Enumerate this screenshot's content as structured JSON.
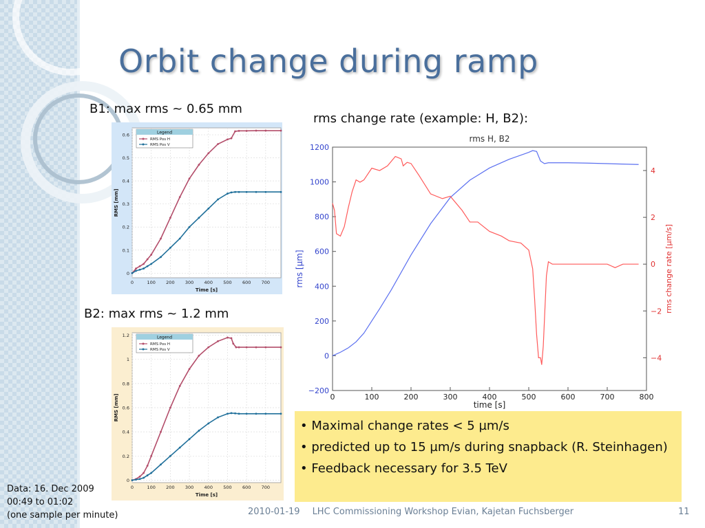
{
  "slide": {
    "title": "Orbit change during ramp",
    "b1_caption": "B1: max rms ~ 0.65 mm",
    "b2_caption": "B2: max rms ~ 1.2 mm",
    "rate_caption": "rms change rate (example: H, B2):",
    "bullets": [
      "• Maximal change rates < 5 µm/s",
      "• predicted up to 15 µm/s during snapback (R. Steinhagen)",
      "• Feedback necessary for 3.5 TeV"
    ],
    "data_note": [
      "Data: 16. Dec 2009",
      "00:49 to 01:02",
      "(one sample per minute)"
    ],
    "footer_date": "2010-01-19",
    "footer_text": "LHC Commissioning Workshop Evian, Kajetan Fuchsberger",
    "page_number": "11",
    "colors": {
      "title": "#4a6f9c",
      "b1_panel_bg": "#d3e6f8",
      "b2_panel_bg": "#fbeed0",
      "bullet_box": "#fdeb8e",
      "rms_h": "#b34d6a",
      "rms_v": "#1f6f9a",
      "rms_line": "#5a6ff0",
      "rate_line": "#ff5a5a"
    }
  },
  "chart_data": [
    {
      "id": "b1",
      "type": "line",
      "xlabel": "Time [s]",
      "ylabel": "RMS [mm]",
      "xlim": [
        0,
        780
      ],
      "ylim": [
        -0.02,
        0.63
      ],
      "xticks": [
        0,
        100,
        200,
        300,
        400,
        500,
        600,
        700
      ],
      "yticks": [
        0,
        0.1,
        0.2,
        0.3,
        0.4,
        0.5,
        0.6
      ],
      "ytick_labels": [
        "0",
        "0.1",
        "0.2",
        "0.3",
        "0.4",
        "0.5",
        "0.6"
      ],
      "legend": {
        "title": "Legend",
        "entries": [
          "RMS Pos H",
          "RMS Pos V"
        ],
        "placement": "top-left"
      },
      "grid": true,
      "series": [
        {
          "name": "RMS Pos H",
          "color": "#b34d6a",
          "x": [
            0,
            20,
            40,
            60,
            80,
            100,
            150,
            200,
            250,
            300,
            350,
            400,
            450,
            500,
            520,
            540,
            560,
            600,
            650,
            700,
            780
          ],
          "y": [
            0.0,
            0.02,
            0.03,
            0.04,
            0.06,
            0.08,
            0.15,
            0.24,
            0.33,
            0.41,
            0.47,
            0.52,
            0.56,
            0.58,
            0.585,
            0.615,
            0.617,
            0.617,
            0.618,
            0.618,
            0.618
          ]
        },
        {
          "name": "RMS Pos V",
          "color": "#1f6f9a",
          "x": [
            0,
            20,
            40,
            60,
            80,
            100,
            150,
            200,
            250,
            300,
            350,
            400,
            450,
            500,
            520,
            540,
            560,
            600,
            650,
            700,
            780
          ],
          "y": [
            0.0,
            0.01,
            0.015,
            0.02,
            0.03,
            0.04,
            0.07,
            0.11,
            0.15,
            0.2,
            0.24,
            0.28,
            0.32,
            0.345,
            0.35,
            0.352,
            0.352,
            0.352,
            0.352,
            0.352,
            0.352
          ]
        }
      ]
    },
    {
      "id": "b2",
      "type": "line",
      "xlabel": "Time [s]",
      "ylabel": "RMS [mm]",
      "xlim": [
        0,
        780
      ],
      "ylim": [
        -0.02,
        1.22
      ],
      "xticks": [
        0,
        100,
        200,
        300,
        400,
        500,
        600,
        700
      ],
      "yticks": [
        0,
        0.2,
        0.4,
        0.6,
        0.8,
        1,
        1.2
      ],
      "ytick_labels": [
        "0",
        "0.2",
        "0.4",
        "0.6",
        "0.8",
        "1",
        "1.2"
      ],
      "legend": {
        "title": "Legend",
        "entries": [
          "RMS Pos H",
          "RMS Pos V"
        ],
        "placement": "top-left"
      },
      "grid": true,
      "series": [
        {
          "name": "RMS Pos H",
          "color": "#b34d6a",
          "x": [
            0,
            20,
            40,
            60,
            80,
            100,
            150,
            200,
            250,
            300,
            350,
            400,
            450,
            500,
            520,
            530,
            545,
            560,
            600,
            650,
            700,
            780
          ],
          "y": [
            0.0,
            0.01,
            0.03,
            0.06,
            0.12,
            0.2,
            0.4,
            0.6,
            0.78,
            0.92,
            1.03,
            1.1,
            1.15,
            1.18,
            1.175,
            1.13,
            1.1,
            1.1,
            1.1,
            1.1,
            1.1,
            1.1
          ]
        },
        {
          "name": "RMS Pos V",
          "color": "#1f6f9a",
          "x": [
            0,
            20,
            40,
            60,
            80,
            100,
            150,
            200,
            250,
            300,
            350,
            400,
            450,
            500,
            520,
            540,
            560,
            600,
            650,
            700,
            780
          ],
          "y": [
            0.0,
            0.005,
            0.01,
            0.02,
            0.04,
            0.06,
            0.13,
            0.2,
            0.27,
            0.34,
            0.41,
            0.47,
            0.52,
            0.55,
            0.555,
            0.553,
            0.55,
            0.55,
            0.55,
            0.55,
            0.55
          ]
        }
      ]
    },
    {
      "id": "rate",
      "type": "line",
      "title": "rms H, B2",
      "xlabel": "time [s]",
      "ylabel": "rms [µm]",
      "ylabel_right": "rms change rate [µm/s]",
      "xlim": [
        0,
        800
      ],
      "ylim": [
        -200,
        1200
      ],
      "ylim_right": [
        -5.4,
        5.0
      ],
      "xticks": [
        0,
        100,
        200,
        300,
        400,
        500,
        600,
        700,
        800
      ],
      "yticks": [
        -200,
        0,
        200,
        400,
        600,
        800,
        1000,
        1200
      ],
      "ytick_labels": [
        "−200",
        "0",
        "200",
        "400",
        "600",
        "800",
        "1000",
        "1200"
      ],
      "yticks_right": [
        -4,
        -2,
        0,
        2,
        4
      ],
      "ytick_labels_right": [
        "−4",
        "−2",
        "0",
        "2",
        "4"
      ],
      "grid": false,
      "series": [
        {
          "name": "rms",
          "axis": "left",
          "color": "#5a6ff0",
          "x": [
            0,
            20,
            40,
            60,
            80,
            100,
            120,
            150,
            200,
            250,
            300,
            350,
            400,
            450,
            500,
            510,
            520,
            530,
            540,
            550,
            600,
            650,
            700,
            780
          ],
          "y": [
            0,
            20,
            45,
            80,
            130,
            200,
            270,
            380,
            580,
            760,
            910,
            1010,
            1080,
            1130,
            1170,
            1180,
            1175,
            1120,
            1105,
            1110,
            1110,
            1108,
            1105,
            1100
          ]
        },
        {
          "name": "rate",
          "axis": "right",
          "color": "#ff5a5a",
          "x": [
            0,
            5,
            10,
            20,
            30,
            40,
            50,
            60,
            70,
            80,
            100,
            120,
            140,
            160,
            175,
            180,
            190,
            200,
            220,
            250,
            280,
            300,
            330,
            350,
            370,
            400,
            430,
            450,
            480,
            500,
            510,
            515,
            520,
            525,
            530,
            533,
            537,
            545,
            550,
            560,
            600,
            650,
            700,
            720,
            740,
            780
          ],
          "y": [
            2.6,
            2.3,
            1.3,
            1.2,
            1.6,
            2.4,
            3.1,
            3.6,
            3.5,
            3.6,
            4.1,
            4.0,
            4.2,
            4.6,
            4.5,
            4.2,
            4.35,
            4.3,
            3.8,
            3.0,
            2.8,
            2.9,
            2.3,
            1.8,
            1.8,
            1.4,
            1.2,
            1.0,
            0.9,
            0.6,
            -0.2,
            -1.5,
            -3.0,
            -4.0,
            -4.0,
            -4.3,
            -3.5,
            -0.5,
            0.1,
            0.0,
            0.0,
            0.0,
            0.0,
            -0.15,
            0.0,
            0.0
          ]
        }
      ]
    }
  ]
}
